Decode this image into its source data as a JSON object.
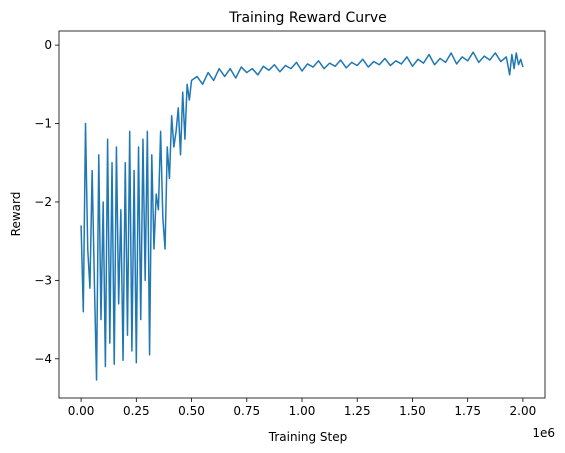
{
  "chart_data": {
    "type": "line",
    "title": "Training Reward Curve",
    "xlabel": "Training Step",
    "ylabel": "Reward",
    "x_offset_label": "1e6",
    "xlim": [
      -100000,
      2100000
    ],
    "ylim": [
      -4.5,
      0.18
    ],
    "x_ticks": [
      0,
      250000,
      500000,
      750000,
      1000000,
      1250000,
      1500000,
      1750000,
      2000000
    ],
    "x_tick_labels": [
      "0.00",
      "0.25",
      "0.50",
      "0.75",
      "1.00",
      "1.25",
      "1.50",
      "1.75",
      "2.00"
    ],
    "y_ticks": [
      -4,
      -3,
      -2,
      -1,
      0
    ],
    "y_tick_labels": [
      "−4",
      "−3",
      "−2",
      "−1",
      "0"
    ],
    "grid": false,
    "series": [
      {
        "color": "#1f77b4",
        "x": [
          0,
          10000,
          20000,
          30000,
          40000,
          50000,
          60000,
          70000,
          80000,
          90000,
          100000,
          110000,
          120000,
          130000,
          140000,
          150000,
          160000,
          170000,
          180000,
          190000,
          200000,
          210000,
          220000,
          230000,
          240000,
          250000,
          260000,
          270000,
          280000,
          290000,
          300000,
          310000,
          320000,
          330000,
          340000,
          350000,
          360000,
          370000,
          380000,
          390000,
          400000,
          410000,
          420000,
          430000,
          440000,
          450000,
          460000,
          470000,
          480000,
          490000,
          500000,
          525000,
          550000,
          575000,
          600000,
          625000,
          650000,
          675000,
          700000,
          725000,
          750000,
          775000,
          800000,
          825000,
          850000,
          875000,
          900000,
          925000,
          950000,
          975000,
          1000000,
          1025000,
          1050000,
          1075000,
          1100000,
          1125000,
          1150000,
          1175000,
          1200000,
          1225000,
          1250000,
          1275000,
          1300000,
          1325000,
          1350000,
          1375000,
          1400000,
          1425000,
          1450000,
          1475000,
          1500000,
          1525000,
          1550000,
          1575000,
          1600000,
          1625000,
          1650000,
          1675000,
          1700000,
          1725000,
          1750000,
          1775000,
          1800000,
          1825000,
          1850000,
          1875000,
          1900000,
          1925000,
          1940000,
          1950000,
          1960000,
          1970000,
          1980000,
          1990000,
          2000000
        ],
        "values": [
          -2.3,
          -3.4,
          -1.0,
          -2.6,
          -3.1,
          -1.6,
          -3.0,
          -4.27,
          -1.4,
          -3.5,
          -2.0,
          -4.1,
          -1.2,
          -3.8,
          -1.5,
          -4.07,
          -1.3,
          -3.3,
          -2.1,
          -4.02,
          -1.5,
          -3.7,
          -1.1,
          -3.9,
          -1.6,
          -4.05,
          -1.3,
          -3.5,
          -1.2,
          -3.0,
          -1.1,
          -3.95,
          -1.4,
          -2.6,
          -1.9,
          -2.1,
          -1.1,
          -2.2,
          -2.6,
          -1.3,
          -1.7,
          -0.9,
          -1.3,
          -1.1,
          -0.8,
          -1.4,
          -0.6,
          -1.2,
          -0.5,
          -0.7,
          -0.45,
          -0.4,
          -0.5,
          -0.35,
          -0.45,
          -0.3,
          -0.4,
          -0.3,
          -0.42,
          -0.28,
          -0.35,
          -0.3,
          -0.38,
          -0.27,
          -0.32,
          -0.25,
          -0.34,
          -0.26,
          -0.3,
          -0.22,
          -0.33,
          -0.24,
          -0.28,
          -0.2,
          -0.3,
          -0.23,
          -0.27,
          -0.19,
          -0.29,
          -0.22,
          -0.26,
          -0.18,
          -0.28,
          -0.21,
          -0.25,
          -0.17,
          -0.26,
          -0.2,
          -0.24,
          -0.15,
          -0.27,
          -0.18,
          -0.23,
          -0.12,
          -0.25,
          -0.17,
          -0.22,
          -0.1,
          -0.24,
          -0.15,
          -0.2,
          -0.09,
          -0.22,
          -0.14,
          -0.19,
          -0.1,
          -0.21,
          -0.15,
          -0.38,
          -0.12,
          -0.3,
          -0.1,
          -0.25,
          -0.18,
          -0.28
        ]
      }
    ]
  }
}
